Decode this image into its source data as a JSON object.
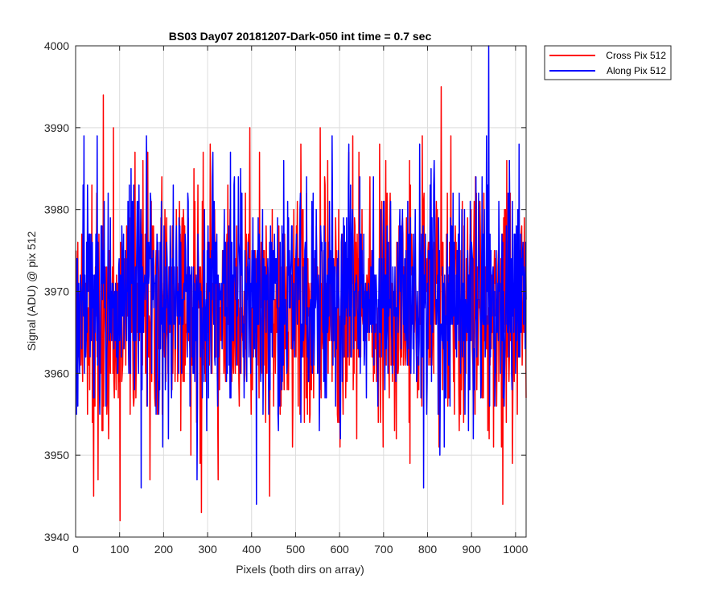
{
  "chart_data": {
    "type": "line",
    "title": "BS03 Day07 20181207-Dark-050 int time = 0.7 sec",
    "xlabel": "Pixels (both dirs on array)",
    "ylabel": "Signal (ADU) @ pix 512",
    "xlim": [
      0,
      1024
    ],
    "ylim": [
      3940,
      4000
    ],
    "xticks": [
      0,
      100,
      200,
      300,
      400,
      500,
      600,
      700,
      800,
      900,
      1000
    ],
    "yticks": [
      3940,
      3950,
      3960,
      3970,
      3980,
      3990,
      4000
    ],
    "grid": true,
    "legend_position": "outside-top-right",
    "n_points": 1024,
    "series": [
      {
        "name": "Cross Pix 512",
        "color": "#ff0000",
        "mean": 3968,
        "std": 7.5,
        "seed": 11,
        "extremes": [
          {
            "x": 62,
            "y": 3994
          },
          {
            "x": 85,
            "y": 3990
          },
          {
            "x": 100,
            "y": 3942
          },
          {
            "x": 40,
            "y": 3945
          },
          {
            "x": 285,
            "y": 3943
          },
          {
            "x": 555,
            "y": 3990
          },
          {
            "x": 830,
            "y": 3995
          },
          {
            "x": 970,
            "y": 3944
          },
          {
            "x": 440,
            "y": 3945
          },
          {
            "x": 50,
            "y": 3947
          },
          {
            "x": 305,
            "y": 3988
          }
        ]
      },
      {
        "name": "Along Pix 512",
        "color": "#0000ff",
        "mean": 3969,
        "std": 7,
        "seed": 29,
        "extremes": [
          {
            "x": 938,
            "y": 4000
          },
          {
            "x": 790,
            "y": 3991
          },
          {
            "x": 18,
            "y": 3989
          },
          {
            "x": 48,
            "y": 3989
          },
          {
            "x": 160,
            "y": 3989
          },
          {
            "x": 410,
            "y": 3944
          },
          {
            "x": 790,
            "y": 3946
          },
          {
            "x": 275,
            "y": 3947
          },
          {
            "x": 620,
            "y": 3988
          },
          {
            "x": 985,
            "y": 3986
          }
        ]
      }
    ]
  }
}
